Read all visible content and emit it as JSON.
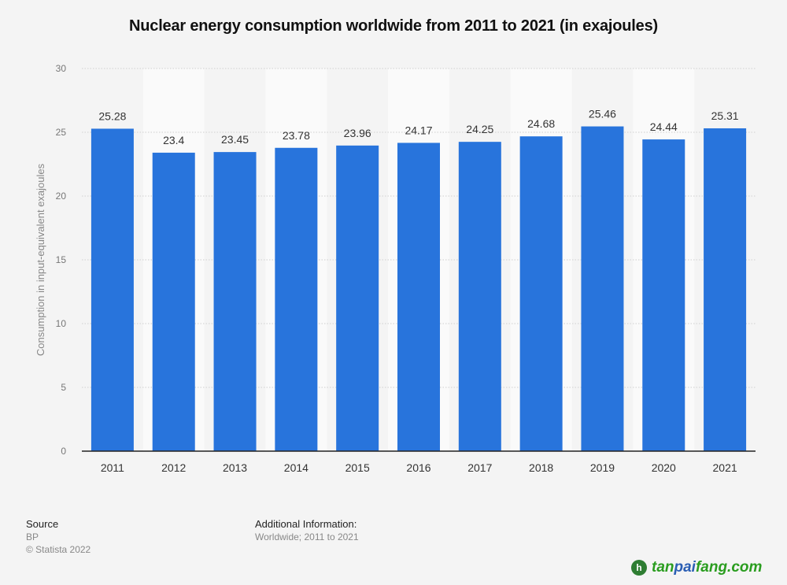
{
  "chart_data": {
    "type": "bar",
    "title": "Nuclear energy consumption worldwide from 2011 to 2021 (in exajoules)",
    "xlabel": "",
    "ylabel": "Consumption in input-equivalent exajoules",
    "categories": [
      "2011",
      "2012",
      "2013",
      "2014",
      "2015",
      "2016",
      "2017",
      "2018",
      "2019",
      "2020",
      "2021"
    ],
    "values": [
      25.28,
      23.4,
      23.45,
      23.78,
      23.96,
      24.17,
      24.25,
      24.68,
      25.46,
      24.44,
      25.31
    ],
    "value_labels": [
      "25.28",
      "23.4",
      "23.45",
      "23.78",
      "23.96",
      "24.17",
      "24.25",
      "24.68",
      "25.46",
      "24.44",
      "25.31"
    ],
    "ylim": [
      0,
      30
    ],
    "yticks": [
      0,
      5,
      10,
      15,
      20,
      25,
      30
    ],
    "ytick_labels": [
      "0",
      "5",
      "10",
      "15",
      "20",
      "25",
      "30"
    ],
    "grid": true,
    "bar_color": "#2874dc"
  },
  "footer": {
    "source_heading": "Source",
    "source": "BP",
    "copyright": "© Statista 2022",
    "additional_heading": "Additional Information:",
    "additional": "Worldwide; 2011 to 2021"
  },
  "watermark": {
    "logo_letter": "h",
    "text_left": "tan",
    "text_mid": "pai",
    "text_right": "fang.com"
  }
}
